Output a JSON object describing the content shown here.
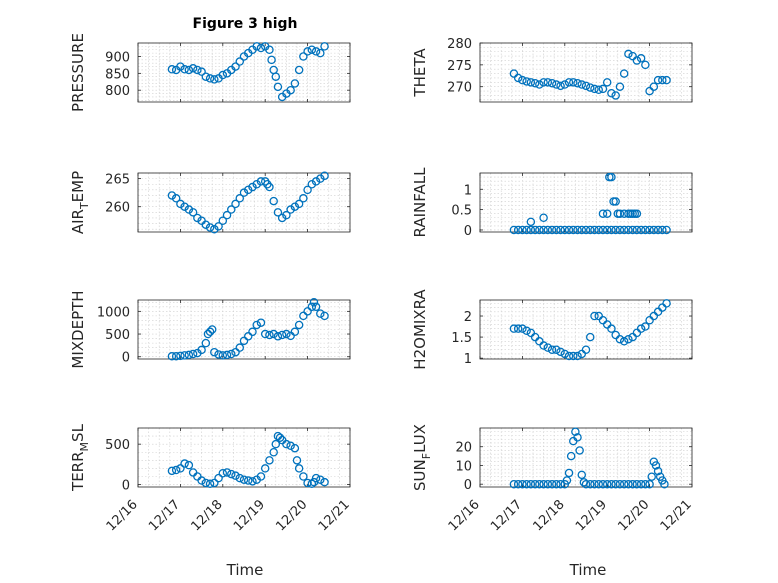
{
  "title": "Figure 3 high",
  "x_axis_label": "Time",
  "x_tick_labels": [
    "12/16",
    "12/17",
    "12/18",
    "12/19",
    "12/20",
    "12/21"
  ],
  "chart_data": [
    {
      "type": "scatter",
      "ylabel": "PRESSURE",
      "title": "Figure 3 high",
      "xlim": [
        16,
        21
      ],
      "ylim": [
        765,
        940
      ],
      "yticks": [
        800,
        850,
        900
      ],
      "x": [
        16.8,
        16.9,
        17.0,
        17.1,
        17.2,
        17.3,
        17.4,
        17.5,
        17.6,
        17.7,
        17.8,
        17.9,
        18.0,
        18.1,
        18.2,
        18.3,
        18.4,
        18.5,
        18.6,
        18.7,
        18.8,
        18.9,
        19.0,
        19.1,
        19.15,
        19.2,
        19.25,
        19.3,
        19.4,
        19.5,
        19.6,
        19.7,
        19.8,
        19.9,
        20.0,
        20.1,
        20.2,
        20.3,
        20.4
      ],
      "y": [
        862,
        860,
        870,
        862,
        860,
        865,
        860,
        855,
        840,
        835,
        832,
        835,
        845,
        850,
        860,
        870,
        885,
        900,
        910,
        920,
        930,
        925,
        930,
        920,
        890,
        860,
        840,
        810,
        780,
        790,
        800,
        820,
        860,
        900,
        915,
        920,
        915,
        910,
        930
      ]
    },
    {
      "type": "scatter",
      "ylabel": "THETA",
      "xlim": [
        16,
        21
      ],
      "ylim": [
        266.5,
        280
      ],
      "yticks": [
        270,
        275,
        280
      ],
      "x": [
        16.8,
        16.9,
        17.0,
        17.1,
        17.2,
        17.3,
        17.4,
        17.5,
        17.6,
        17.7,
        17.8,
        17.9,
        18.0,
        18.1,
        18.2,
        18.3,
        18.4,
        18.5,
        18.6,
        18.7,
        18.8,
        18.9,
        19.0,
        19.1,
        19.2,
        19.3,
        19.4,
        19.5,
        19.6,
        19.7,
        19.8,
        19.9,
        20.0,
        20.1,
        20.2,
        20.3,
        20.4
      ],
      "y": [
        273,
        272,
        271.5,
        271.2,
        271,
        270.8,
        270.5,
        271,
        271,
        270.8,
        270.5,
        270.2,
        270.5,
        271,
        271,
        270.8,
        270.5,
        270.2,
        269.8,
        269.5,
        269.3,
        269.5,
        271,
        268.5,
        268,
        270,
        273,
        277.5,
        277,
        276,
        276.5,
        275,
        269,
        270,
        271.5,
        271.5,
        271.5
      ]
    },
    {
      "type": "scatter",
      "ylabel": "AIR_TEMP",
      "xlim": [
        16,
        21
      ],
      "ylim": [
        255.5,
        266
      ],
      "yticks": [
        260,
        265
      ],
      "x": [
        16.8,
        16.9,
        17.0,
        17.1,
        17.2,
        17.3,
        17.4,
        17.5,
        17.6,
        17.7,
        17.8,
        17.9,
        18.0,
        18.1,
        18.2,
        18.3,
        18.4,
        18.5,
        18.6,
        18.7,
        18.8,
        18.9,
        19.0,
        19.05,
        19.1,
        19.2,
        19.3,
        19.4,
        19.5,
        19.6,
        19.7,
        19.8,
        19.9,
        20.0,
        20.1,
        20.2,
        20.3,
        20.4
      ],
      "y": [
        262,
        261.5,
        260.5,
        260,
        259.5,
        259,
        258,
        257.5,
        256.8,
        256.3,
        256,
        256.5,
        257.5,
        258.5,
        259.5,
        260.5,
        261.5,
        262.5,
        263,
        263.5,
        264,
        264.5,
        264.5,
        264,
        263.5,
        261,
        259,
        258,
        258.5,
        259.5,
        260,
        260.5,
        261.5,
        263,
        264,
        264.5,
        265,
        265.5
      ]
    },
    {
      "type": "scatter",
      "ylabel": "RAINFALL",
      "xlim": [
        16,
        21
      ],
      "ylim": [
        -0.05,
        1.4
      ],
      "yticks": [
        0,
        0.5,
        1
      ],
      "x": [
        16.8,
        16.9,
        17.0,
        17.1,
        17.2,
        17.3,
        17.4,
        17.5,
        17.6,
        17.7,
        17.8,
        17.9,
        18.0,
        18.1,
        18.2,
        18.3,
        18.4,
        18.5,
        18.6,
        18.7,
        18.8,
        18.9,
        19.0,
        19.1,
        19.2,
        19.3,
        19.4,
        19.5,
        19.6,
        19.7,
        19.8,
        19.9,
        20.0,
        20.1,
        20.2,
        20.3,
        20.4,
        17.2,
        17.5,
        18.9,
        19.0,
        19.05,
        19.1,
        19.15,
        19.2,
        19.25,
        19.3,
        19.4,
        19.5,
        19.55,
        19.6,
        19.65,
        19.7
      ],
      "y": [
        0,
        0,
        0,
        0,
        0,
        0,
        0,
        0,
        0,
        0,
        0,
        0,
        0,
        0,
        0,
        0,
        0,
        0,
        0,
        0,
        0,
        0,
        0,
        0,
        0,
        0,
        0,
        0,
        0,
        0,
        0,
        0,
        0,
        0,
        0,
        0,
        0,
        0.2,
        0.3,
        0.4,
        0.4,
        1.3,
        1.3,
        0.7,
        0.7,
        0.4,
        0.4,
        0.4,
        0.4,
        0.4,
        0.4,
        0.4,
        0.4
      ]
    },
    {
      "type": "scatter",
      "ylabel": "MIXDEPTH",
      "xlim": [
        16,
        21
      ],
      "ylim": [
        -50,
        1250
      ],
      "yticks": [
        0,
        500,
        1000
      ],
      "x": [
        16.8,
        16.9,
        17.0,
        17.1,
        17.2,
        17.3,
        17.4,
        17.5,
        17.6,
        17.65,
        17.7,
        17.75,
        17.8,
        17.9,
        18.0,
        18.1,
        18.2,
        18.3,
        18.4,
        18.5,
        18.6,
        18.7,
        18.8,
        18.9,
        19.0,
        19.1,
        19.2,
        19.3,
        19.4,
        19.5,
        19.6,
        19.7,
        19.8,
        19.9,
        20.0,
        20.1,
        20.15,
        20.2,
        20.3,
        20.4
      ],
      "y": [
        10,
        10,
        20,
        30,
        40,
        60,
        80,
        150,
        300,
        500,
        550,
        600,
        100,
        50,
        30,
        40,
        60,
        100,
        200,
        350,
        450,
        550,
        700,
        750,
        500,
        480,
        500,
        450,
        480,
        500,
        460,
        550,
        700,
        900,
        1000,
        1100,
        1200,
        1100,
        950,
        900
      ]
    },
    {
      "type": "scatter",
      "ylabel": "H2OMIXRA",
      "xlim": [
        16,
        21
      ],
      "ylim": [
        0.98,
        2.38
      ],
      "yticks": [
        1,
        1.5,
        2
      ],
      "x": [
        16.8,
        16.9,
        17.0,
        17.1,
        17.2,
        17.3,
        17.4,
        17.5,
        17.6,
        17.7,
        17.8,
        17.9,
        18.0,
        18.1,
        18.2,
        18.3,
        18.4,
        18.5,
        18.6,
        18.7,
        18.8,
        18.9,
        19.0,
        19.1,
        19.2,
        19.3,
        19.4,
        19.5,
        19.6,
        19.7,
        19.8,
        19.9,
        20.0,
        20.1,
        20.2,
        20.3,
        20.4
      ],
      "y": [
        1.7,
        1.7,
        1.7,
        1.65,
        1.6,
        1.5,
        1.4,
        1.3,
        1.25,
        1.2,
        1.2,
        1.15,
        1.1,
        1.05,
        1.05,
        1.05,
        1.1,
        1.2,
        1.5,
        2.0,
        2.0,
        1.9,
        1.8,
        1.7,
        1.55,
        1.45,
        1.4,
        1.45,
        1.5,
        1.6,
        1.7,
        1.75,
        1.9,
        2.0,
        2.1,
        2.2,
        2.3
      ]
    },
    {
      "type": "scatter",
      "ylabel": "TERR_MSL",
      "xlim": [
        16,
        21
      ],
      "ylim": [
        -30,
        700
      ],
      "yticks": [
        0,
        500
      ],
      "x": [
        16.8,
        16.9,
        17.0,
        17.1,
        17.2,
        17.3,
        17.4,
        17.5,
        17.6,
        17.7,
        17.8,
        17.9,
        18.0,
        18.1,
        18.2,
        18.3,
        18.4,
        18.5,
        18.6,
        18.7,
        18.8,
        18.9,
        19.0,
        19.1,
        19.2,
        19.25,
        19.3,
        19.35,
        19.4,
        19.5,
        19.6,
        19.7,
        19.75,
        19.8,
        19.9,
        20.0,
        20.1,
        20.15,
        20.2,
        20.3,
        20.4
      ],
      "y": [
        170,
        180,
        200,
        260,
        240,
        150,
        100,
        50,
        20,
        10,
        20,
        80,
        140,
        150,
        130,
        110,
        80,
        60,
        50,
        40,
        60,
        100,
        200,
        300,
        400,
        500,
        600,
        580,
        550,
        500,
        480,
        450,
        300,
        200,
        100,
        20,
        10,
        30,
        80,
        60,
        30
      ]
    },
    {
      "type": "scatter",
      "ylabel": "SUN_FLUX",
      "xlim": [
        16,
        21
      ],
      "ylim": [
        -1.5,
        30
      ],
      "yticks": [
        0,
        10,
        20
      ],
      "x": [
        16.8,
        16.9,
        17.0,
        17.1,
        17.2,
        17.3,
        17.4,
        17.5,
        17.6,
        17.7,
        17.8,
        17.9,
        18.0,
        18.05,
        18.1,
        18.15,
        18.2,
        18.25,
        18.3,
        18.35,
        18.4,
        18.45,
        18.5,
        18.6,
        18.7,
        18.8,
        18.9,
        19.0,
        19.1,
        19.2,
        19.3,
        19.4,
        19.5,
        19.6,
        19.7,
        19.8,
        19.9,
        20.0,
        20.05,
        20.1,
        20.15,
        20.2,
        20.25,
        20.3,
        20.35
      ],
      "y": [
        0,
        0,
        0,
        0,
        0,
        0,
        0,
        0,
        0,
        0,
        0,
        0,
        0,
        2,
        6,
        15,
        23,
        28,
        25,
        18,
        5,
        1,
        0,
        0,
        0,
        0,
        0,
        0,
        0,
        0,
        0,
        0,
        0,
        0,
        0,
        0,
        0,
        0,
        4,
        12,
        10,
        7,
        4,
        2,
        0
      ]
    }
  ]
}
